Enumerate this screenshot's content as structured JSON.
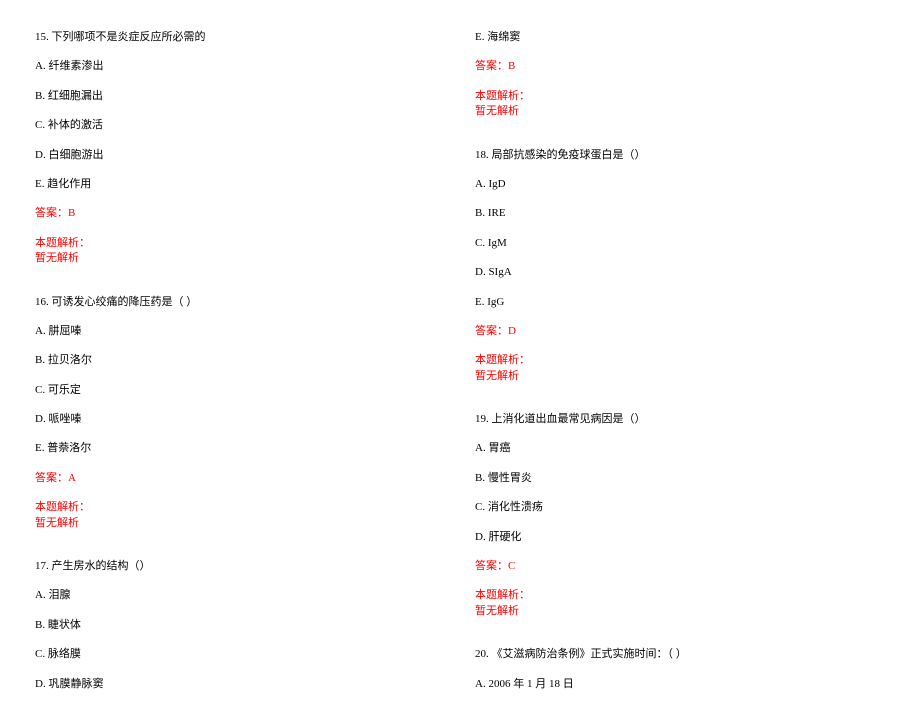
{
  "left": {
    "q15": {
      "stem": "15. 下列哪项不是炎症反应所必需的",
      "a": "A. 纤维素渗出",
      "b": "B. 红细胞漏出",
      "c": "C. 补体的激活",
      "d": "D. 白细胞游出",
      "e": "E. 趋化作用",
      "answer": "答案：B",
      "analysis_label": "本题解析：",
      "analysis_text": "暂无解析"
    },
    "q16": {
      "stem": "16. 可诱发心绞痛的降压药是（  ）",
      "a": "A. 肼屈嗪",
      "b": "B. 拉贝洛尔",
      "c": "C. 可乐定",
      "d": "D. 哌唑嗪",
      "e": "E. 普萘洛尔",
      "answer": "答案：A",
      "analysis_label": "本题解析：",
      "analysis_text": "暂无解析"
    },
    "q17": {
      "stem": "17. 产生房水的结构（）",
      "a": "A. 泪腺",
      "b": "B. 睫状体",
      "c": "C. 脉络膜",
      "d": "D. 巩膜静脉窦"
    }
  },
  "right": {
    "q17e": "E. 海绵窦",
    "q17answer": "答案：B",
    "q17analysis_label": "本题解析：",
    "q17analysis_text": "暂无解析",
    "q18": {
      "stem": "18. 局部抗感染的免疫球蛋白是（）",
      "a": "A. IgD",
      "b": "B. IRE",
      "c": "C. IgM",
      "d": "D. SIgA",
      "e": "E. IgG",
      "answer": "答案：D",
      "analysis_label": "本题解析：",
      "analysis_text": "暂无解析"
    },
    "q19": {
      "stem": "19. 上消化道出血最常见病因是（）",
      "a": "A. 胃癌",
      "b": "B. 慢性胃炎",
      "c": "C. 消化性溃疡",
      "d": "D. 肝硬化",
      "answer": "答案：C",
      "analysis_label": "本题解析：",
      "analysis_text": "暂无解析"
    },
    "q20": {
      "stem": "20. 《艾滋病防治条例》正式实施时间：（   ）",
      "a": "A. 2006 年 1 月 18 日"
    }
  }
}
